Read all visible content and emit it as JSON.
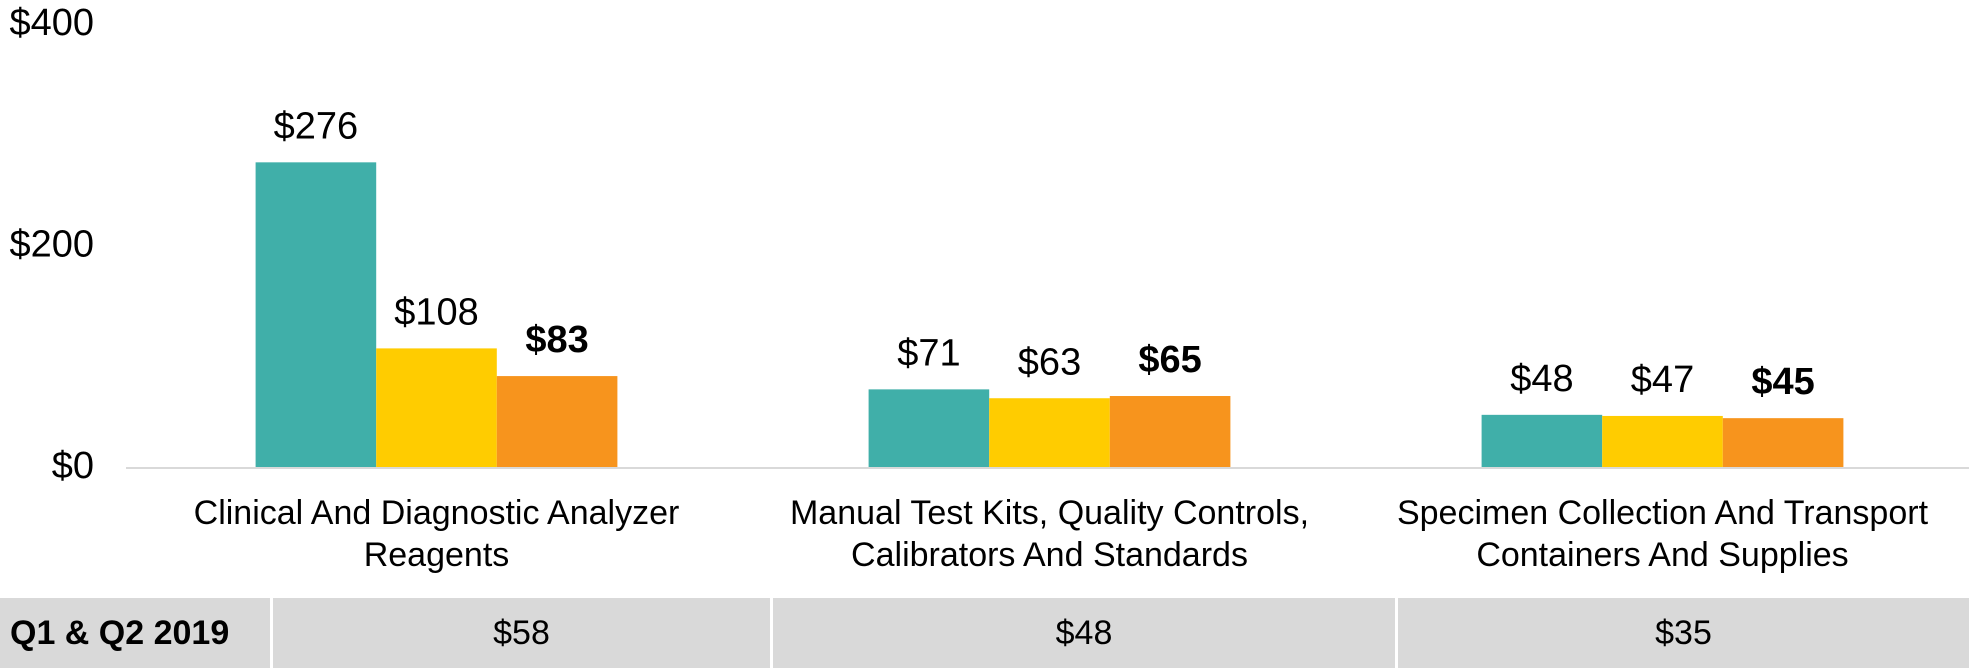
{
  "chart_data": {
    "type": "bar",
    "categories": [
      "Clinical And Diagnostic Analyzer Reagents",
      "Manual Test Kits, Quality Controls, Calibrators And Standards",
      "Specimen Collection And Transport Containers And Supplies"
    ],
    "series": [
      {
        "color": "#40afa9",
        "values": [
          276,
          71,
          48
        ],
        "value_labels": [
          "$276",
          "$71",
          "$48"
        ]
      },
      {
        "color": "#ffcc00",
        "values": [
          108,
          63,
          47
        ],
        "value_labels": [
          "$108",
          "$63",
          "$47"
        ]
      },
      {
        "color": "#f7941d",
        "values": [
          83,
          65,
          45
        ],
        "value_labels": [
          "$83",
          "$65",
          "$45"
        ],
        "bold_labels": true
      }
    ],
    "ylim": [
      0,
      400
    ],
    "yticks": [
      {
        "value": 0,
        "label": "$0"
      },
      {
        "value": 200,
        "label": "$200"
      },
      {
        "value": 400,
        "label": "$400"
      }
    ],
    "grid": false
  },
  "table": {
    "header": "Q1 & Q2 2019",
    "cells": [
      "$58",
      "$48",
      "$35"
    ]
  }
}
